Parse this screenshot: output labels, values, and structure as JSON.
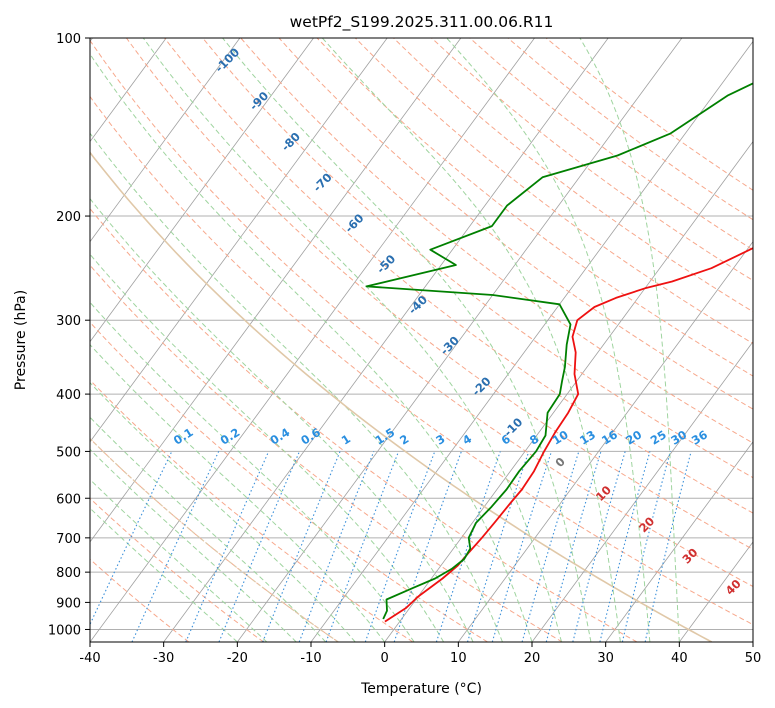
{
  "chart_data": {
    "type": "line",
    "subtype": "skew-t log-p diagram",
    "title": "wetPf2_S199.2025.311.00.06.R11",
    "xlabel": "Temperature (°C)",
    "ylabel": "Pressure (hPa)",
    "xlim": [
      -40,
      50
    ],
    "ylim": [
      1050,
      100
    ],
    "y_scale": "log",
    "grid": true,
    "x_ticks": [
      "-40",
      "-30",
      "-20",
      "-10",
      "0",
      "10",
      "20",
      "30",
      "40",
      "50"
    ],
    "y_ticks": [
      "100",
      "200",
      "300",
      "400",
      "500",
      "600",
      "700",
      "800",
      "900",
      "1000"
    ],
    "series": [
      {
        "role": "temperature",
        "color": "#ee1111",
        "points": [
          [
            -2,
            970
          ],
          [
            -0.5,
            920
          ],
          [
            0,
            880
          ],
          [
            1.5,
            820
          ],
          [
            2.3,
            780
          ],
          [
            2.5,
            740
          ],
          [
            2.8,
            700
          ],
          [
            3,
            660
          ],
          [
            3.2,
            610
          ],
          [
            3.4,
            580
          ],
          [
            3.2,
            540
          ],
          [
            2.6,
            500
          ],
          [
            2.2,
            465
          ],
          [
            2,
            430
          ],
          [
            1.5,
            400
          ],
          [
            -1,
            370
          ],
          [
            -3,
            340
          ],
          [
            -5,
            320
          ],
          [
            -6,
            300
          ],
          [
            -5,
            285
          ],
          [
            -3,
            275
          ],
          [
            0,
            265
          ],
          [
            3,
            258
          ],
          [
            7,
            245
          ],
          [
            11,
            225
          ],
          [
            14,
            205
          ],
          [
            16,
            190
          ],
          [
            18,
            175
          ],
          [
            20,
            160
          ],
          [
            22,
            145
          ],
          [
            24,
            130
          ],
          [
            27,
            118
          ],
          [
            29,
            108
          ],
          [
            30,
            100
          ]
        ]
      },
      {
        "role": "dewpoint",
        "color": "#008000",
        "points": [
          [
            -2.5,
            960
          ],
          [
            -2.8,
            930
          ],
          [
            -4,
            890
          ],
          [
            -1.5,
            850
          ],
          [
            0.5,
            820
          ],
          [
            1.8,
            790
          ],
          [
            2.5,
            760
          ],
          [
            2.3,
            730
          ],
          [
            1,
            700
          ],
          [
            0.5,
            660
          ],
          [
            1,
            620
          ],
          [
            1.3,
            580
          ],
          [
            1.2,
            540
          ],
          [
            1.5,
            500
          ],
          [
            1.2,
            470
          ],
          [
            -0.8,
            430
          ],
          [
            -1,
            400
          ],
          [
            -2,
            380
          ],
          [
            -3,
            360
          ],
          [
            -5,
            330
          ],
          [
            -6.5,
            305
          ],
          [
            -10,
            282
          ],
          [
            -20,
            272
          ],
          [
            -38,
            263
          ],
          [
            -28,
            242
          ],
          [
            -33,
            228
          ],
          [
            -27,
            208
          ],
          [
            -27,
            192
          ],
          [
            -25,
            172
          ],
          [
            -17,
            158
          ],
          [
            -12,
            145
          ],
          [
            -8,
            125
          ],
          [
            -2,
            110
          ],
          [
            2,
            100
          ]
        ]
      }
    ],
    "mixing_ratio_labels": [
      "0.1",
      "0.2",
      "0.4",
      "0.6",
      "1",
      "1.5",
      "2",
      "3",
      "4",
      "6",
      "8",
      "10",
      "13",
      "16",
      "20",
      "25",
      "30",
      "36"
    ],
    "dry_adiabat_labels": [
      "-100",
      "-90",
      "-80",
      "-70",
      "-60",
      "-50",
      "-40",
      "-30",
      "-20",
      "-10"
    ],
    "moist_adiabat_labels": [
      "0",
      "10",
      "20",
      "30",
      "40"
    ],
    "colors": {
      "isobar": "#b0b0b0",
      "isotherm": "#a0a0a0",
      "dry_adiabat": "#f7a88c",
      "moist_adiabat": "#9fd49f",
      "mixing_ratio": "#3a8fd9",
      "mixing_label": "#2a8fe0",
      "dry_label": "#2a6fb0",
      "moist_label": "#d03030",
      "zero_label": "#777777",
      "reference_curve": "#e0c8a8"
    }
  }
}
